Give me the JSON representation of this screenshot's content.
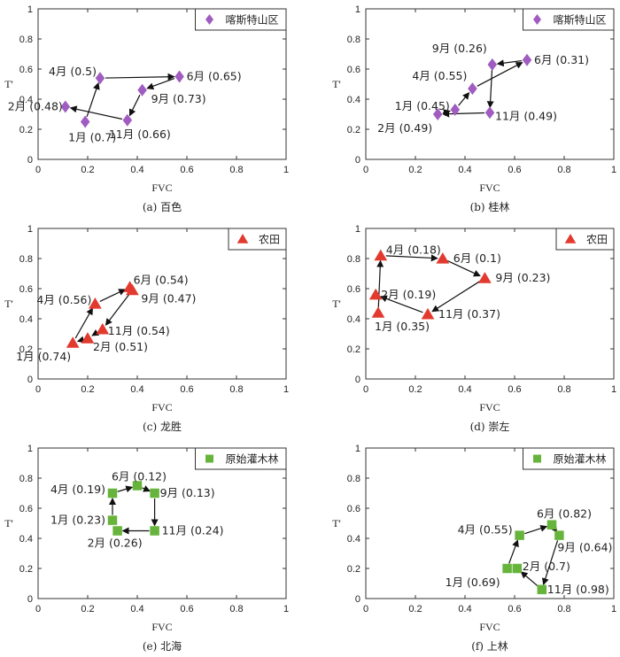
{
  "chart_data": [
    {
      "type": "scatter",
      "caption": "(a) 百色",
      "xlabel": "FVC",
      "ylabel": "T'",
      "xlim": [
        0,
        1
      ],
      "ylim": [
        0,
        1
      ],
      "xticks": [
        "0",
        "0.2",
        "0.4",
        "0.6",
        "0.8",
        "1"
      ],
      "yticks": [
        "0",
        "0.2",
        "0.4",
        "0.6",
        "0.8",
        "1"
      ],
      "legend": {
        "label": "喀斯特山区",
        "position": "top-right"
      },
      "marker": "diamond",
      "color": "#a05cc0",
      "points": [
        {
          "label": "1月 (0.7)",
          "x": 0.19,
          "y": 0.25
        },
        {
          "label": "2月 (0.48)",
          "x": 0.11,
          "y": 0.35
        },
        {
          "label": "4月 (0.5)",
          "x": 0.25,
          "y": 0.54
        },
        {
          "label": "6月 (0.65)",
          "x": 0.57,
          "y": 0.55
        },
        {
          "label": "9月 (0.73)",
          "x": 0.42,
          "y": 0.46
        },
        {
          "label": "11月 (0.66)",
          "x": 0.36,
          "y": 0.26
        }
      ],
      "arrows": [
        [
          0,
          2
        ],
        [
          2,
          3
        ],
        [
          3,
          4
        ],
        [
          4,
          5
        ],
        [
          5,
          1
        ]
      ]
    },
    {
      "type": "scatter",
      "caption": "(b) 桂林",
      "xlabel": "FVC",
      "ylabel": "T'",
      "xlim": [
        0,
        1
      ],
      "ylim": [
        0,
        1
      ],
      "xticks": [
        "0",
        "0.2",
        "0.4",
        "0.6",
        "0.8",
        "1"
      ],
      "yticks": [
        "0",
        "0.2",
        "0.4",
        "0.6",
        "0.8",
        "1"
      ],
      "legend": {
        "label": "喀斯特山区",
        "position": "top-right"
      },
      "marker": "diamond",
      "color": "#a05cc0",
      "points": [
        {
          "label": "9月 (0.26)",
          "x": 0.51,
          "y": 0.63
        },
        {
          "label": "6月 (0.31)",
          "x": 0.65,
          "y": 0.66
        },
        {
          "label": "4月 (0.55)",
          "x": 0.43,
          "y": 0.47
        },
        {
          "label": "1月 (0.45)",
          "x": 0.36,
          "y": 0.33
        },
        {
          "label": "2月 (0.49)",
          "x": 0.29,
          "y": 0.3
        },
        {
          "label": "11月 (0.49)",
          "x": 0.5,
          "y": 0.31
        }
      ],
      "arrows": [
        [
          4,
          3
        ],
        [
          3,
          2
        ],
        [
          2,
          1
        ],
        [
          1,
          0
        ],
        [
          0,
          5
        ],
        [
          5,
          4
        ]
      ]
    },
    {
      "type": "scatter",
      "caption": "(c) 龙胜",
      "xlabel": "FVC",
      "ylabel": "T'",
      "xlim": [
        0,
        1
      ],
      "ylim": [
        0,
        1
      ],
      "xticks": [
        "0",
        "0.2",
        "0.4",
        "0.6",
        "0.8",
        "1"
      ],
      "yticks": [
        "0",
        "0.2",
        "0.4",
        "0.6",
        "0.8",
        "1"
      ],
      "legend": {
        "label": "农田",
        "position": "top-right"
      },
      "marker": "triangle",
      "color": "#e23a2f",
      "points": [
        {
          "label": "4月 (0.56)",
          "x": 0.23,
          "y": 0.5
        },
        {
          "label": "6月 (0.54)",
          "x": 0.37,
          "y": 0.61
        },
        {
          "label": "9月 (0.47)",
          "x": 0.38,
          "y": 0.59
        },
        {
          "label": "11月 (0.54)",
          "x": 0.26,
          "y": 0.33
        },
        {
          "label": "2月 (0.51)",
          "x": 0.2,
          "y": 0.27
        },
        {
          "label": "1月 (0.74)",
          "x": 0.14,
          "y": 0.24
        }
      ],
      "arrows": [
        [
          5,
          0
        ],
        [
          0,
          1
        ],
        [
          2,
          3
        ],
        [
          3,
          4
        ],
        [
          4,
          5
        ]
      ]
    },
    {
      "type": "scatter",
      "caption": "(d) 崇左",
      "xlabel": "FVC",
      "ylabel": "T'",
      "xlim": [
        0,
        1
      ],
      "ylim": [
        0,
        1
      ],
      "xticks": [
        "0",
        "0.2",
        "0.4",
        "0.6",
        "0.8",
        "1"
      ],
      "yticks": [
        "0",
        "0.2",
        "0.4",
        "0.6",
        "0.8",
        "1"
      ],
      "legend": {
        "label": "农田",
        "position": "top-right"
      },
      "marker": "triangle",
      "color": "#e23a2f",
      "points": [
        {
          "label": "4月 (0.18)",
          "x": 0.06,
          "y": 0.82
        },
        {
          "label": "6月 (0.1)",
          "x": 0.31,
          "y": 0.8
        },
        {
          "label": "9月 (0.23)",
          "x": 0.48,
          "y": 0.67
        },
        {
          "label": "11月 (0.37)",
          "x": 0.25,
          "y": 0.43
        },
        {
          "label": "2月 (0.19)",
          "x": 0.04,
          "y": 0.56
        },
        {
          "label": "1月 (0.35)",
          "x": 0.05,
          "y": 0.44
        }
      ],
      "arrows": [
        [
          5,
          0
        ],
        [
          0,
          1
        ],
        [
          1,
          2
        ],
        [
          2,
          3
        ],
        [
          3,
          4
        ]
      ]
    },
    {
      "type": "scatter",
      "caption": "(e) 北海",
      "xlabel": "FVC",
      "ylabel": "T'",
      "xlim": [
        0,
        1
      ],
      "ylim": [
        0,
        1
      ],
      "xticks": [
        "0",
        "0.2",
        "0.4",
        "0.6",
        "0.8",
        "1"
      ],
      "yticks": [
        "0",
        "0.2",
        "0.4",
        "0.6",
        "0.8",
        "1"
      ],
      "legend": {
        "label": "原始灌木林",
        "position": "top-right"
      },
      "marker": "square",
      "color": "#67b43c",
      "points": [
        {
          "label": "6月 (0.12)",
          "x": 0.4,
          "y": 0.75
        },
        {
          "label": "4月 (0.19)",
          "x": 0.3,
          "y": 0.7
        },
        {
          "label": "9月 (0.13)",
          "x": 0.47,
          "y": 0.7
        },
        {
          "label": "1月 (0.23)",
          "x": 0.3,
          "y": 0.52
        },
        {
          "label": "2月 (0.26)",
          "x": 0.32,
          "y": 0.45
        },
        {
          "label": "11月 (0.24)",
          "x": 0.47,
          "y": 0.45
        }
      ],
      "arrows": [
        [
          3,
          1
        ],
        [
          1,
          0
        ],
        [
          0,
          2
        ],
        [
          2,
          5
        ],
        [
          5,
          4
        ]
      ]
    },
    {
      "type": "scatter",
      "caption": "(f) 上林",
      "xlabel": "FVC",
      "ylabel": "T'",
      "xlim": [
        0,
        1
      ],
      "ylim": [
        0,
        1
      ],
      "xticks": [
        "0",
        "0.2",
        "0.4",
        "0.6",
        "0.8",
        "1"
      ],
      "yticks": [
        "0",
        "0.2",
        "0.4",
        "0.6",
        "0.8",
        "1"
      ],
      "legend": {
        "label": "原始灌木林",
        "position": "top-right"
      },
      "marker": "square",
      "color": "#67b43c",
      "points": [
        {
          "label": "6月 (0.82)",
          "x": 0.75,
          "y": 0.49
        },
        {
          "label": "4月 (0.55)",
          "x": 0.62,
          "y": 0.42
        },
        {
          "label": "9月 (0.64)",
          "x": 0.78,
          "y": 0.42
        },
        {
          "label": "2月 (0.7)",
          "x": 0.61,
          "y": 0.2
        },
        {
          "label": "1月 (0.69)",
          "x": 0.57,
          "y": 0.2
        },
        {
          "label": "11月 (0.98)",
          "x": 0.71,
          "y": 0.06
        }
      ],
      "arrows": [
        [
          4,
          1
        ],
        [
          1,
          0
        ],
        [
          0,
          2
        ],
        [
          2,
          5
        ],
        [
          5,
          3
        ]
      ]
    }
  ]
}
